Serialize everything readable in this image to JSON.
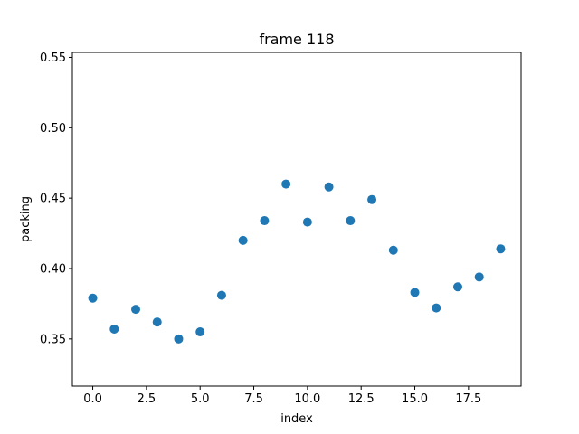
{
  "chart_data": {
    "type": "scatter",
    "title": "frame 118",
    "xlabel": "index",
    "ylabel": "packing",
    "xlim": [
      -0.95,
      19.95
    ],
    "ylim": [
      0.3165,
      0.5535
    ],
    "xticks": [
      0.0,
      2.5,
      5.0,
      7.5,
      10.0,
      12.5,
      15.0,
      17.5
    ],
    "xtick_labels": [
      "0.0",
      "2.5",
      "5.0",
      "7.5",
      "10.0",
      "12.5",
      "15.0",
      "17.5"
    ],
    "yticks": [
      0.35,
      0.4,
      0.45,
      0.5,
      0.55
    ],
    "ytick_labels": [
      "0.35",
      "0.40",
      "0.45",
      "0.50",
      "0.55"
    ],
    "grid": false,
    "marker_color": "#1f77b4",
    "x": [
      0,
      1,
      2,
      3,
      4,
      5,
      6,
      7,
      8,
      9,
      10,
      11,
      12,
      13,
      14,
      15,
      16,
      17,
      18,
      19
    ],
    "y": [
      0.379,
      0.357,
      0.371,
      0.362,
      0.35,
      0.355,
      0.381,
      0.42,
      0.434,
      0.46,
      0.433,
      0.458,
      0.434,
      0.449,
      0.413,
      0.383,
      0.372,
      0.387,
      0.394,
      0.414
    ]
  }
}
